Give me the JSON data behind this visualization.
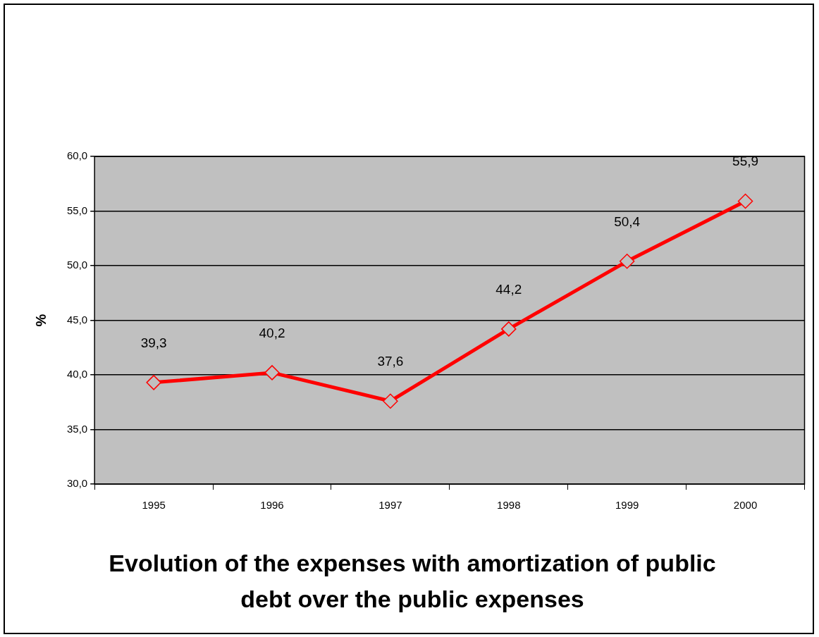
{
  "chart_data": {
    "type": "line",
    "title": "Evolution of the expenses with amortization of public debt over the public expenses",
    "ylabel": "%",
    "categories": [
      "1995",
      "1996",
      "1997",
      "1998",
      "1999",
      "2000"
    ],
    "series": [
      {
        "color": "#ff0000",
        "values": [
          39.3,
          40.2,
          37.6,
          44.2,
          50.4,
          55.9
        ]
      }
    ],
    "ylim": [
      30,
      60
    ],
    "yticks": [
      {
        "value": 30,
        "label": "30,0"
      },
      {
        "value": 35,
        "label": "35,0"
      },
      {
        "value": 40,
        "label": "40,0"
      },
      {
        "value": 45,
        "label": "45,0"
      },
      {
        "value": 50,
        "label": "50,0"
      },
      {
        "value": 55,
        "label": "55,0"
      },
      {
        "value": 60,
        "label": "60,0"
      }
    ],
    "value_labels": [
      "39,3",
      "40,2",
      "37,6",
      "44,2",
      "50,4",
      "55,9"
    ],
    "grid": "y",
    "legend": false,
    "marker": "diamond",
    "line_style": "solid"
  }
}
